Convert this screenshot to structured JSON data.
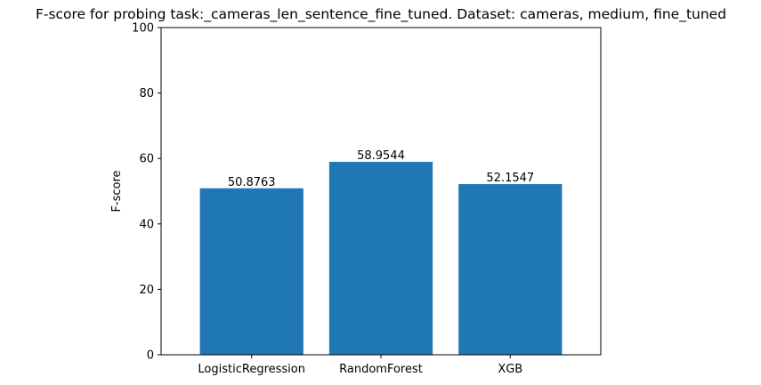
{
  "chart_data": {
    "type": "bar",
    "title": "F-score for probing task:_cameras_len_sentence_fine_tuned. Dataset: cameras, medium, fine_tuned",
    "xlabel": "",
    "ylabel": "F-score",
    "categories": [
      "LogisticRegression",
      "RandomForest",
      "XGB"
    ],
    "values": [
      50.8763,
      58.9544,
      52.1547
    ],
    "value_labels": [
      "50.8763",
      "58.9544",
      "52.1547"
    ],
    "ylim": [
      0,
      100
    ],
    "yticks": [
      0,
      20,
      40,
      60,
      80,
      100
    ],
    "ytick_labels": [
      "0",
      "20",
      "40",
      "60",
      "80",
      "100"
    ],
    "bar_color": "#1f77b4",
    "grid": false,
    "legend": "none"
  }
}
